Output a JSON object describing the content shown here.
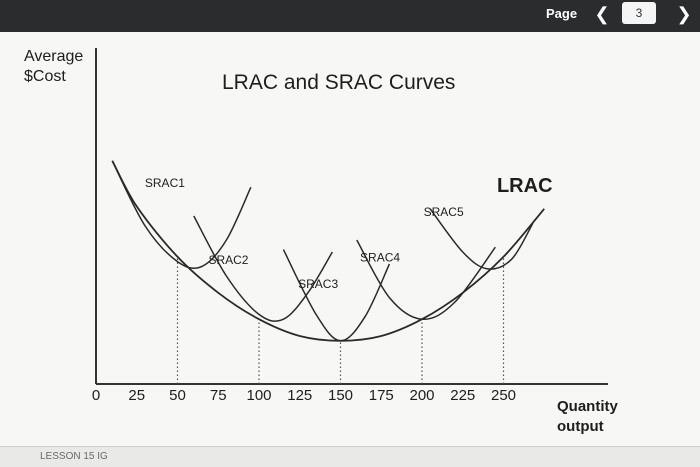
{
  "toolbar": {
    "page_label": "Page",
    "prev_icon": "chevron-left-icon",
    "page_number": "3",
    "next_icon": "chevron-right-icon"
  },
  "footer": {
    "text": "LESSON 15 IG"
  },
  "chart_data": {
    "type": "line",
    "title": "LRAC and SRAC Curves",
    "ylabel_line1": "Average",
    "ylabel_line2": "$Cost",
    "xlabel_line1": "Quantity",
    "xlabel_line2": "output",
    "xlim": [
      0,
      275
    ],
    "ylim": [
      0,
      100
    ],
    "x_ticks": [
      0,
      25,
      50,
      75,
      100,
      125,
      150,
      175,
      200,
      225,
      250
    ],
    "grid": false,
    "series": [
      {
        "name": "LRAC",
        "x": [
          10,
          25,
          50,
          75,
          100,
          125,
          150,
          175,
          200,
          225,
          250,
          275
        ],
        "y": [
          93,
          74,
          53,
          38,
          27,
          20,
          18,
          20,
          27,
          38,
          53,
          73
        ]
      },
      {
        "name": "SRAC1",
        "x": [
          10,
          30,
          50,
          65,
          80,
          95
        ],
        "y": [
          93,
          66,
          51,
          49,
          60,
          82
        ]
      },
      {
        "name": "SRAC2",
        "x": [
          60,
          80,
          100,
          115,
          130,
          145
        ],
        "y": [
          70,
          45,
          29,
          27,
          38,
          55
        ]
      },
      {
        "name": "SRAC3",
        "x": [
          115,
          135,
          150,
          165,
          180
        ],
        "y": [
          56,
          29,
          18,
          28,
          50
        ]
      },
      {
        "name": "SRAC4",
        "x": [
          160,
          180,
          200,
          220,
          245
        ],
        "y": [
          60,
          36,
          27,
          34,
          57
        ]
      },
      {
        "name": "SRAC5",
        "x": [
          205,
          225,
          240,
          255,
          268
        ],
        "y": [
          73,
          55,
          48,
          52,
          67
        ]
      }
    ],
    "marker_quantities": [
      50,
      100,
      150,
      200,
      250
    ]
  }
}
